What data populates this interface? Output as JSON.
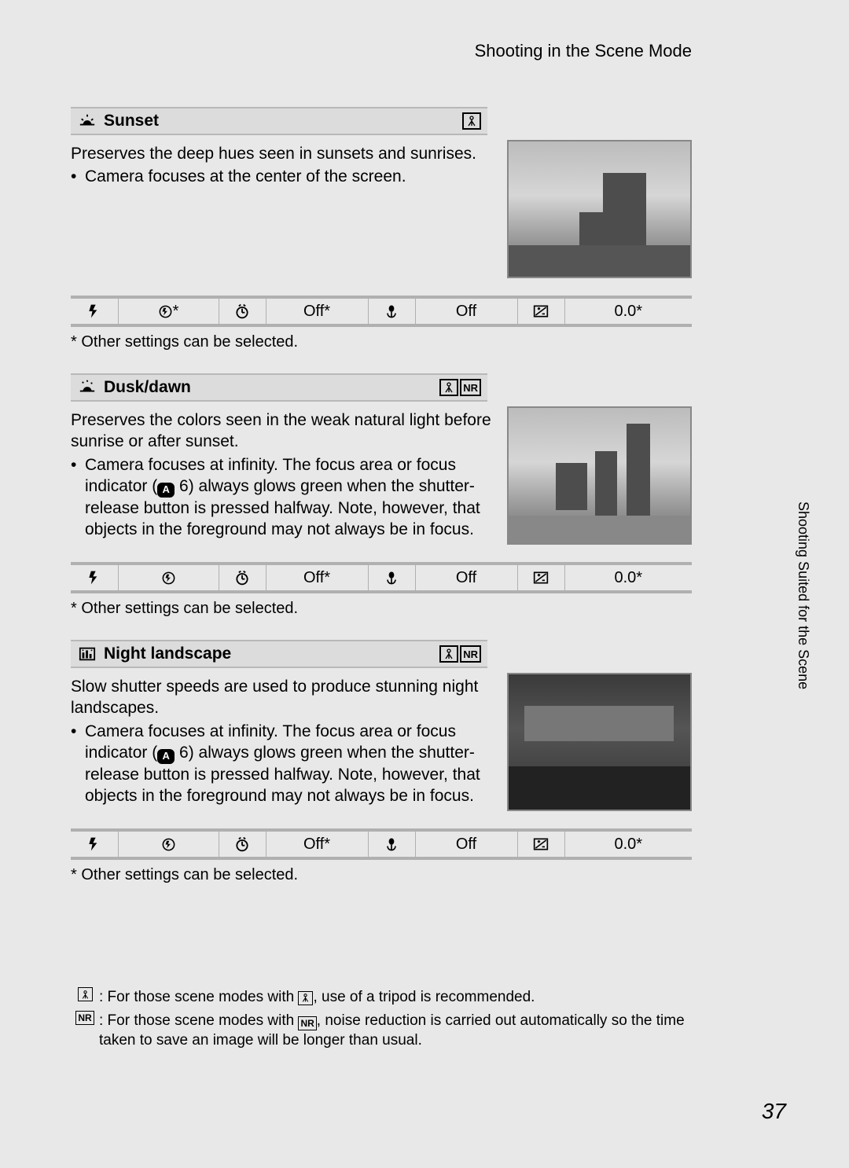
{
  "page_title": "Shooting in the Scene Mode",
  "side_tab": "Shooting Suited for the Scene",
  "page_number": "37",
  "footnote_template": "*  Other settings can be selected.",
  "icons": {
    "flash": "flash",
    "selftimer": "selftimer",
    "macro": "macro",
    "exposure": "exposure",
    "flash_off": "flash_off",
    "tripod": "tripod",
    "nr": "NR",
    "camera_ref": "A"
  },
  "sections": [
    {
      "icon": "sunset-icon",
      "title": "Sunset",
      "badges": [
        "tripod"
      ],
      "desc": "Preserves the deep hues seen in sunsets and sunrises.",
      "bullets": [
        "Camera focuses at the center of the screen."
      ],
      "settings": {
        "flash_val": "⊘*",
        "timer_val": "Off*",
        "macro_val": "Off",
        "exp_val": "0.0*"
      }
    },
    {
      "icon": "dusk-icon",
      "title": "Dusk/dawn",
      "badges": [
        "tripod",
        "nr"
      ],
      "desc": "Preserves the colors seen in the weak natural light before sunrise or after sunset.",
      "bullets": [
        "Camera focuses at infinity. The focus area or focus indicator (__CAM__ 6) always glows green when the shutter-release button is pressed halfway. Note, however, that objects in the foreground may not always be in focus."
      ],
      "settings": {
        "flash_val": "⊘",
        "timer_val": "Off*",
        "macro_val": "Off",
        "exp_val": "0.0*"
      }
    },
    {
      "icon": "landscape-icon",
      "title": "Night landscape",
      "badges": [
        "tripod",
        "nr"
      ],
      "desc": "Slow shutter speeds are used to produce stunning night landscapes.",
      "bullets": [
        "Camera focuses at infinity. The focus area or focus indicator (__CAM__ 6) always glows green when the shutter-release button is pressed halfway. Note, however, that objects in the foreground may not always be in focus."
      ],
      "settings": {
        "flash_val": "⊘",
        "timer_val": "Off*",
        "macro_val": "Off",
        "exp_val": "0.0*"
      }
    }
  ],
  "legend": [
    {
      "key": "tripod",
      "text": ": For those scene modes with __TRI__, use of a tripod is recommended."
    },
    {
      "key": "nr",
      "text": ": For those scene modes with __NR__, noise reduction is carried out automatically so the time taken to save an image will be longer than usual."
    }
  ]
}
